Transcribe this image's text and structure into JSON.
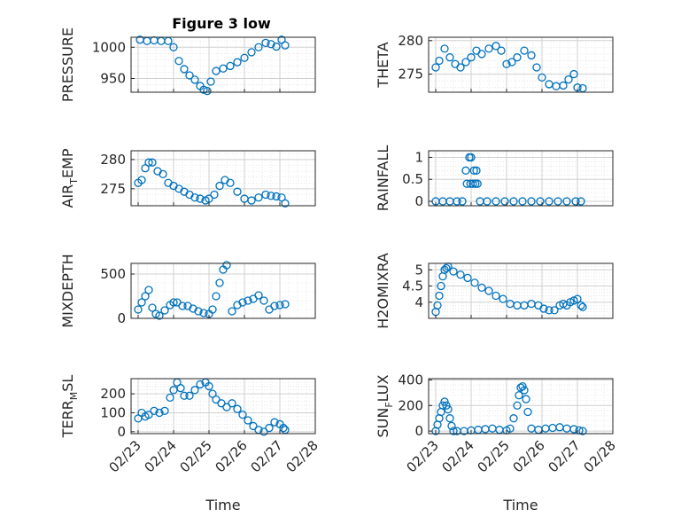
{
  "figure_title": "Figure 3 low",
  "colors": {
    "marker": "#0072BD",
    "axes": "#262626",
    "grid": "#dcdcdc",
    "background": "#ffffff"
  },
  "chart_data": [
    {
      "type": "scatter",
      "title": "Figure 3 low",
      "ylabel": "PRESSURE",
      "xlabel": "",
      "xlim": [
        "02/23",
        "02/28"
      ],
      "ylim": [
        928,
        1016
      ],
      "yticks": [
        950,
        1000
      ],
      "xticks": [
        "02/23",
        "02/24",
        "02/25",
        "02/26",
        "02/27",
        "02/28"
      ],
      "grid": true,
      "x": [
        23.05,
        23.25,
        23.45,
        23.65,
        23.85,
        24.0,
        24.15,
        24.3,
        24.45,
        24.6,
        24.75,
        24.85,
        24.95,
        25.05,
        25.2,
        25.4,
        25.6,
        25.8,
        26.0,
        26.2,
        26.4,
        26.6,
        26.75,
        26.9,
        27.05,
        27.15
      ],
      "y": [
        1012,
        1010,
        1011,
        1010,
        1010,
        1000,
        978,
        965,
        955,
        948,
        938,
        932,
        930,
        945,
        962,
        966,
        970,
        976,
        983,
        992,
        1000,
        1007,
        1005,
        1001,
        1012,
        1003
      ]
    },
    {
      "type": "scatter",
      "ylabel": "THETA",
      "xlabel": "",
      "xlim": [
        "02/23",
        "02/28"
      ],
      "ylim": [
        272.3,
        280.5
      ],
      "yticks": [
        275,
        280
      ],
      "xticks": [
        "02/23",
        "02/24",
        "02/25",
        "02/26",
        "02/27",
        "02/28"
      ],
      "grid": true,
      "x": [
        23.0,
        23.1,
        23.25,
        23.4,
        23.55,
        23.7,
        23.85,
        24.0,
        24.15,
        24.3,
        24.5,
        24.7,
        24.85,
        25.0,
        25.15,
        25.3,
        25.5,
        25.7,
        25.85,
        26.0,
        26.2,
        26.4,
        26.6,
        26.75,
        26.9,
        27.0,
        27.15
      ],
      "y": [
        276.0,
        277.0,
        278.8,
        277.5,
        276.5,
        276.0,
        276.8,
        277.5,
        278.5,
        278.0,
        278.8,
        279.2,
        278.5,
        276.5,
        276.8,
        277.5,
        278.5,
        277.8,
        276.0,
        274.5,
        273.5,
        273.2,
        273.3,
        274.2,
        275.0,
        273.0,
        272.9
      ]
    },
    {
      "type": "scatter",
      "ylabel": "AIR_TEMP",
      "xlabel": "",
      "xlim": [
        "02/23",
        "02/28"
      ],
      "ylim": [
        272.1,
        281.5
      ],
      "yticks": [
        275,
        280
      ],
      "xticks": [
        "02/23",
        "02/24",
        "02/25",
        "02/26",
        "02/27",
        "02/28"
      ],
      "grid": true,
      "x": [
        23.0,
        23.1,
        23.2,
        23.3,
        23.4,
        23.55,
        23.7,
        23.85,
        24.0,
        24.15,
        24.3,
        24.45,
        24.6,
        24.75,
        24.9,
        25.0,
        25.15,
        25.3,
        25.45,
        25.6,
        25.8,
        26.0,
        26.2,
        26.4,
        26.6,
        26.75,
        26.9,
        27.05,
        27.15
      ],
      "y": [
        276.0,
        276.5,
        278.5,
        279.5,
        279.5,
        278.0,
        277.5,
        276.0,
        275.5,
        275.0,
        274.5,
        274.0,
        273.5,
        273.3,
        273.0,
        273.3,
        274.0,
        275.5,
        276.5,
        276.0,
        274.5,
        273.3,
        273.0,
        273.5,
        274.0,
        273.8,
        273.7,
        273.5,
        272.5
      ]
    },
    {
      "type": "scatter",
      "ylabel": "RAINFALL",
      "xlabel": "",
      "xlim": [
        "02/23",
        "02/28"
      ],
      "ylim": [
        -0.1,
        1.15
      ],
      "yticks": [
        0,
        0.5,
        1
      ],
      "xticks": [
        "02/23",
        "02/24",
        "02/25",
        "02/26",
        "02/27",
        "02/28"
      ],
      "grid": true,
      "x": [
        23.0,
        23.2,
        23.4,
        23.6,
        23.75,
        23.85,
        23.88,
        23.95,
        23.98,
        24.0,
        24.05,
        24.08,
        24.12,
        24.15,
        24.18,
        24.25,
        24.45,
        24.7,
        24.95,
        25.2,
        25.45,
        25.7,
        25.95,
        26.2,
        26.45,
        26.7,
        26.95,
        27.1
      ],
      "y": [
        0,
        0,
        0,
        0,
        0,
        0.7,
        0.4,
        1,
        0.4,
        1,
        0.4,
        0.7,
        0.4,
        0.7,
        0.4,
        0,
        0,
        0,
        0,
        0,
        0,
        0,
        0,
        0,
        0,
        0,
        0,
        0
      ]
    },
    {
      "type": "scatter",
      "ylabel": "MIXDEPTH",
      "xlabel": "",
      "xlim": [
        "02/23",
        "02/28"
      ],
      "ylim": [
        0,
        620
      ],
      "yticks": [
        0,
        500
      ],
      "xticks": [
        "02/23",
        "02/24",
        "02/25",
        "02/26",
        "02/27",
        "02/28"
      ],
      "grid": true,
      "x": [
        23.0,
        23.1,
        23.2,
        23.3,
        23.4,
        23.5,
        23.6,
        23.75,
        23.9,
        24.0,
        24.1,
        24.25,
        24.4,
        24.55,
        24.7,
        24.85,
        25.0,
        25.1,
        25.2,
        25.3,
        25.4,
        25.5,
        25.65,
        25.8,
        25.95,
        26.1,
        26.25,
        26.4,
        26.55,
        26.7,
        26.85,
        27.0,
        27.15
      ],
      "y": [
        100,
        180,
        250,
        320,
        120,
        50,
        30,
        90,
        150,
        180,
        180,
        140,
        140,
        110,
        80,
        60,
        50,
        100,
        250,
        400,
        550,
        600,
        80,
        150,
        180,
        200,
        220,
        260,
        200,
        100,
        140,
        150,
        160
      ]
    },
    {
      "type": "scatter",
      "ylabel": "H2OMIXRA",
      "xlabel": "",
      "xlim": [
        "02/23",
        "02/28"
      ],
      "ylim": [
        3.5,
        5.2
      ],
      "yticks": [
        4,
        4.5,
        5
      ],
      "xticks": [
        "02/23",
        "02/24",
        "02/25",
        "02/26",
        "02/27",
        "02/28"
      ],
      "grid": true,
      "x": [
        23.0,
        23.05,
        23.1,
        23.15,
        23.2,
        23.25,
        23.3,
        23.35,
        23.5,
        23.7,
        23.9,
        24.1,
        24.3,
        24.5,
        24.7,
        24.9,
        25.1,
        25.3,
        25.5,
        25.7,
        25.9,
        26.05,
        26.2,
        26.35,
        26.5,
        26.6,
        26.7,
        26.8,
        26.9,
        27.0,
        27.1,
        27.15
      ],
      "y": [
        3.7,
        3.9,
        4.2,
        4.5,
        4.8,
        5.0,
        5.05,
        5.1,
        4.95,
        4.85,
        4.75,
        4.6,
        4.45,
        4.35,
        4.2,
        4.1,
        3.95,
        3.9,
        3.9,
        3.95,
        3.9,
        3.8,
        3.75,
        3.75,
        3.9,
        3.95,
        3.9,
        4.0,
        4.05,
        4.1,
        3.9,
        3.85
      ]
    },
    {
      "type": "scatter",
      "ylabel": "TERR_MSL",
      "xlabel": "Time",
      "xlim": [
        "02/23",
        "02/28"
      ],
      "ylim": [
        -10,
        280
      ],
      "yticks": [
        0,
        100,
        200
      ],
      "xticks": [
        "02/23",
        "02/24",
        "02/25",
        "02/26",
        "02/27",
        "02/28"
      ],
      "grid": true,
      "x": [
        23.0,
        23.1,
        23.2,
        23.3,
        23.45,
        23.6,
        23.75,
        23.9,
        24.0,
        24.1,
        24.2,
        24.3,
        24.45,
        24.6,
        24.75,
        24.9,
        25.0,
        25.1,
        25.2,
        25.35,
        25.5,
        25.65,
        25.8,
        25.95,
        26.1,
        26.25,
        26.4,
        26.55,
        26.7,
        26.85,
        27.0,
        27.1,
        27.15
      ],
      "y": [
        70,
        100,
        80,
        90,
        110,
        100,
        110,
        180,
        220,
        260,
        230,
        190,
        190,
        220,
        250,
        260,
        240,
        200,
        170,
        150,
        130,
        150,
        120,
        90,
        60,
        30,
        10,
        0,
        20,
        50,
        40,
        20,
        10
      ]
    },
    {
      "type": "scatter",
      "ylabel": "SUN_FLUX",
      "xlabel": "Time",
      "xlim": [
        "02/23",
        "02/28"
      ],
      "ylim": [
        -20,
        410
      ],
      "yticks": [
        0,
        200,
        400
      ],
      "xticks": [
        "02/23",
        "02/24",
        "02/25",
        "02/26",
        "02/27",
        "02/28"
      ],
      "grid": true,
      "x": [
        23.0,
        23.05,
        23.1,
        23.15,
        23.2,
        23.25,
        23.3,
        23.35,
        23.4,
        23.45,
        23.5,
        23.6,
        23.8,
        24.0,
        24.2,
        24.4,
        24.6,
        24.8,
        25.0,
        25.1,
        25.2,
        25.3,
        25.35,
        25.4,
        25.45,
        25.5,
        25.55,
        25.6,
        25.7,
        25.9,
        26.1,
        26.3,
        26.5,
        26.7,
        26.9,
        27.05,
        27.15
      ],
      "y": [
        0,
        50,
        100,
        150,
        200,
        230,
        200,
        170,
        100,
        40,
        0,
        0,
        0,
        5,
        10,
        15,
        20,
        10,
        5,
        20,
        100,
        200,
        280,
        340,
        350,
        320,
        250,
        150,
        20,
        10,
        20,
        25,
        30,
        20,
        15,
        5,
        0
      ]
    }
  ]
}
